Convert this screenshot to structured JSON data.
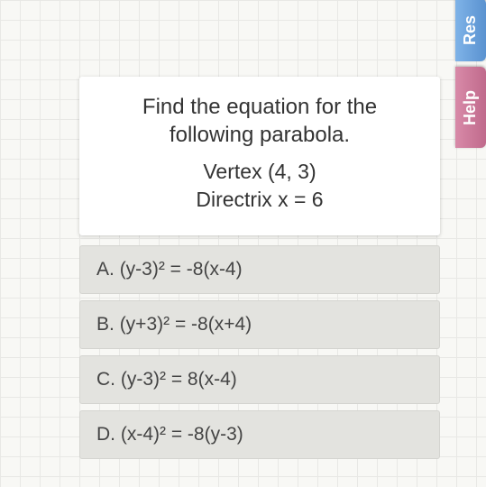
{
  "background": {
    "color": "#f8f8f5",
    "grid_color": "#e8e8e5",
    "grid_size": 22
  },
  "tabs": {
    "resume": {
      "label": "Res",
      "bg_from": "#7fb3e8",
      "bg_to": "#5a92d0"
    },
    "help": {
      "label": "Help",
      "bg_from": "#d88aa8",
      "bg_to": "#c06a8c"
    }
  },
  "question": {
    "line1": "Find the equation for the",
    "line2": "following parabola.",
    "info1": "Vertex (4, 3)",
    "info2": "Directrix x = 6"
  },
  "choices": [
    {
      "letter": "A.",
      "text": "(y-3)² = -8(x-4)"
    },
    {
      "letter": "B.",
      "text": "(y+3)² = -8(x+4)"
    },
    {
      "letter": "C.",
      "text": "(y-3)² = 8(x-4)"
    },
    {
      "letter": "D.",
      "text": "(x-4)² = -8(y-3)"
    }
  ],
  "card_style": {
    "bg": "#ffffff",
    "text_color": "#333333",
    "fontsize_question": 24,
    "fontsize_info": 23
  },
  "choice_style": {
    "bg": "#e3e3df",
    "border": "#d4d4d0",
    "text_color": "#444444",
    "fontsize": 21
  }
}
